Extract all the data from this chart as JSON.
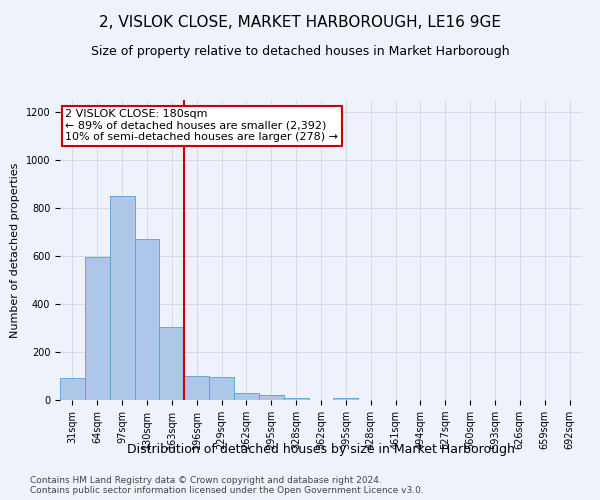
{
  "title": "2, VISLOK CLOSE, MARKET HARBOROUGH, LE16 9GE",
  "subtitle": "Size of property relative to detached houses in Market Harborough",
  "xlabel": "Distribution of detached houses by size in Market Harborough",
  "ylabel": "Number of detached properties",
  "bar_values": [
    90,
    595,
    850,
    670,
    305,
    100,
    95,
    30,
    20,
    10,
    0,
    10,
    0,
    0,
    0,
    0,
    0,
    0,
    0,
    0,
    0
  ],
  "bar_labels": [
    "31sqm",
    "64sqm",
    "97sqm",
    "130sqm",
    "163sqm",
    "196sqm",
    "229sqm",
    "262sqm",
    "295sqm",
    "328sqm",
    "362sqm",
    "395sqm",
    "428sqm",
    "461sqm",
    "494sqm",
    "527sqm",
    "560sqm",
    "593sqm",
    "626sqm",
    "659sqm",
    "692sqm"
  ],
  "bar_color": "#aec6e8",
  "bar_edge_color": "#5a9fd4",
  "vline_color": "#cc0000",
  "vline_pos": 4.5,
  "annotation_text": "2 VISLOK CLOSE: 180sqm\n← 89% of detached houses are smaller (2,392)\n10% of semi-detached houses are larger (278) →",
  "annotation_box_color": "#ffffff",
  "annotation_edge_color": "#cc0000",
  "ylim": [
    0,
    1250
  ],
  "yticks": [
    0,
    200,
    400,
    600,
    800,
    1000,
    1200
  ],
  "grid_color": "#d0d8e8",
  "background_color": "#eef2fb",
  "footer_line1": "Contains HM Land Registry data © Crown copyright and database right 2024.",
  "footer_line2": "Contains public sector information licensed under the Open Government Licence v3.0.",
  "title_fontsize": 11,
  "subtitle_fontsize": 9,
  "xlabel_fontsize": 9,
  "ylabel_fontsize": 8,
  "tick_fontsize": 7,
  "annotation_fontsize": 8,
  "footer_fontsize": 6.5
}
